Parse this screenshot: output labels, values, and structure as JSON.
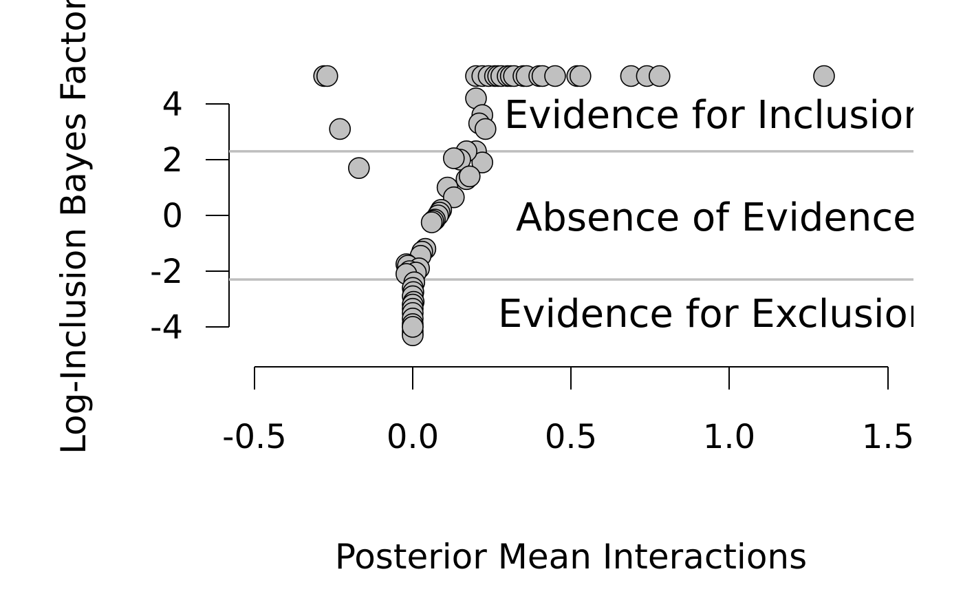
{
  "chart_data": {
    "type": "scatter",
    "xlabel": "Posterior Mean Interactions",
    "ylabel": "Log-Inclusion Bayes Factor",
    "x_ticks": [
      "-0.5",
      "0.0",
      "0.5",
      "1.0",
      "1.5"
    ],
    "y_ticks": [
      "4",
      "2",
      "0",
      "-2",
      "-4"
    ],
    "xlim": [
      -0.5,
      1.5
    ],
    "ylim": [
      -4,
      4
    ],
    "thresholds": [
      2.3,
      -2.3
    ],
    "regions": {
      "inclusion": "Evidence for Inclusion",
      "absence": "Absence of Evidence",
      "exclusion": "Evidence for Exclusion"
    },
    "grid": false,
    "legend": "none",
    "colors": {
      "point_fill": "#c0c0c0",
      "point_edge": "#000000",
      "threshold": "#bebebe"
    },
    "points": [
      {
        "x": -0.28,
        "y": 5
      },
      {
        "x": -0.27,
        "y": 5
      },
      {
        "x": -0.23,
        "y": 3.1
      },
      {
        "x": -0.17,
        "y": 1.7
      },
      {
        "x": 0.2,
        "y": 5
      },
      {
        "x": 0.22,
        "y": 5
      },
      {
        "x": 0.24,
        "y": 5
      },
      {
        "x": 0.26,
        "y": 5
      },
      {
        "x": 0.27,
        "y": 5
      },
      {
        "x": 0.28,
        "y": 5
      },
      {
        "x": 0.3,
        "y": 5
      },
      {
        "x": 0.31,
        "y": 5
      },
      {
        "x": 0.32,
        "y": 5
      },
      {
        "x": 0.35,
        "y": 5
      },
      {
        "x": 0.36,
        "y": 5
      },
      {
        "x": 0.4,
        "y": 5
      },
      {
        "x": 0.41,
        "y": 5
      },
      {
        "x": 0.45,
        "y": 5
      },
      {
        "x": 0.52,
        "y": 5
      },
      {
        "x": 0.53,
        "y": 5
      },
      {
        "x": 0.69,
        "y": 5
      },
      {
        "x": 0.74,
        "y": 5
      },
      {
        "x": 0.78,
        "y": 5
      },
      {
        "x": 1.3,
        "y": 5
      },
      {
        "x": 0.2,
        "y": 4.2
      },
      {
        "x": 0.22,
        "y": 3.6
      },
      {
        "x": 0.21,
        "y": 3.3
      },
      {
        "x": 0.23,
        "y": 3.1
      },
      {
        "x": 0.2,
        "y": 2.3
      },
      {
        "x": 0.22,
        "y": 1.9
      },
      {
        "x": 0.17,
        "y": 2.3
      },
      {
        "x": 0.15,
        "y": 2.0
      },
      {
        "x": 0.13,
        "y": 2.05
      },
      {
        "x": 0.17,
        "y": 1.3
      },
      {
        "x": 0.18,
        "y": 1.4
      },
      {
        "x": 0.11,
        "y": 1.0
      },
      {
        "x": 0.13,
        "y": 0.65
      },
      {
        "x": 0.09,
        "y": 0.2
      },
      {
        "x": 0.085,
        "y": 0.1
      },
      {
        "x": 0.08,
        "y": 0.0
      },
      {
        "x": 0.07,
        "y": -0.15
      },
      {
        "x": 0.065,
        "y": -0.2
      },
      {
        "x": 0.06,
        "y": -0.25
      },
      {
        "x": 0.04,
        "y": -1.2
      },
      {
        "x": 0.03,
        "y": -1.3
      },
      {
        "x": 0.025,
        "y": -1.45
      },
      {
        "x": -0.02,
        "y": -1.75
      },
      {
        "x": -0.015,
        "y": -1.8
      },
      {
        "x": 0.02,
        "y": -1.9
      },
      {
        "x": -0.01,
        "y": -2.0
      },
      {
        "x": 0.01,
        "y": -2.05
      },
      {
        "x": -0.02,
        "y": -2.1
      },
      {
        "x": 0.005,
        "y": -2.4
      },
      {
        "x": 0.0,
        "y": -2.6
      },
      {
        "x": 0.002,
        "y": -2.75
      },
      {
        "x": 0.0,
        "y": -2.9
      },
      {
        "x": 0.003,
        "y": -3.1
      },
      {
        "x": 0.0,
        "y": -3.2
      },
      {
        "x": 0.0,
        "y": -3.35
      },
      {
        "x": 0.0,
        "y": -3.5
      },
      {
        "x": 0.0,
        "y": -3.7
      },
      {
        "x": 0.0,
        "y": -3.9
      },
      {
        "x": 0.0,
        "y": -4.0
      },
      {
        "x": 0.0,
        "y": -4.15
      },
      {
        "x": 0.0,
        "y": -4.25
      },
      {
        "x": 0.0,
        "y": -4.3
      },
      {
        "x": 0.0,
        "y": -4.0
      }
    ]
  }
}
